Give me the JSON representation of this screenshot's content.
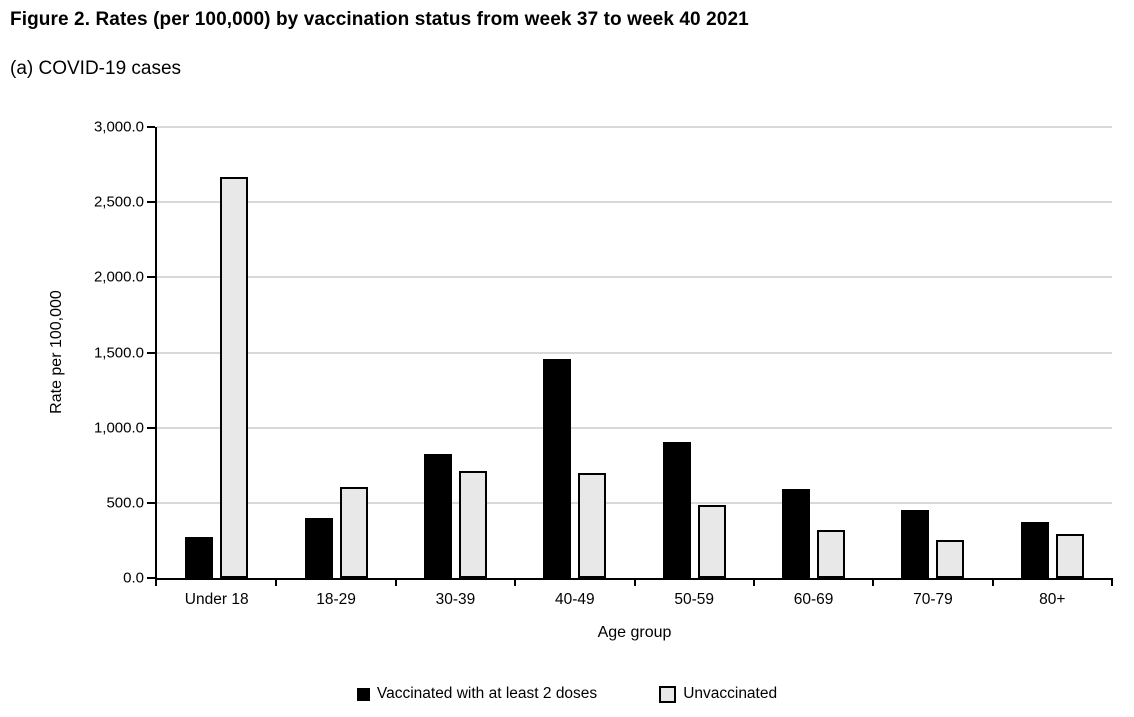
{
  "figure": {
    "title": "Figure 2. Rates (per 100,000) by vaccination status from week 37 to week 40 2021",
    "subtitle": "(a) COVID-19 cases"
  },
  "chart_data": {
    "type": "bar",
    "title": "(a) COVID-19 cases",
    "categories": [
      "Under 18",
      "18-29",
      "30-39",
      "40-49",
      "50-59",
      "60-69",
      "70-79",
      "80+"
    ],
    "series": [
      {
        "name": "Vaccinated with at least 2 doses",
        "color": "#000000",
        "values": [
          275,
          400,
          825,
          1455,
          905,
          590,
          450,
          370
        ]
      },
      {
        "name": "Unvaccinated",
        "color": "#e8e8e8",
        "border_color": "#000000",
        "values": [
          2670,
          605,
          710,
          700,
          485,
          320,
          250,
          295
        ]
      }
    ],
    "xlabel": "Age group",
    "ylabel": "Rate per 100,000",
    "ylim": [
      0,
      3000
    ],
    "ytick_step": 500,
    "ytick_labels": [
      "0.0",
      "500.0",
      "1,000.0",
      "1,500.0",
      "2,000.0",
      "2,500.0",
      "3,000.0"
    ],
    "grid": "horizontal",
    "legend_position": "bottom"
  },
  "colors": {
    "background": "#ffffff",
    "grid": "#d9d9d9",
    "axis": "#000000",
    "text": "#000000"
  }
}
